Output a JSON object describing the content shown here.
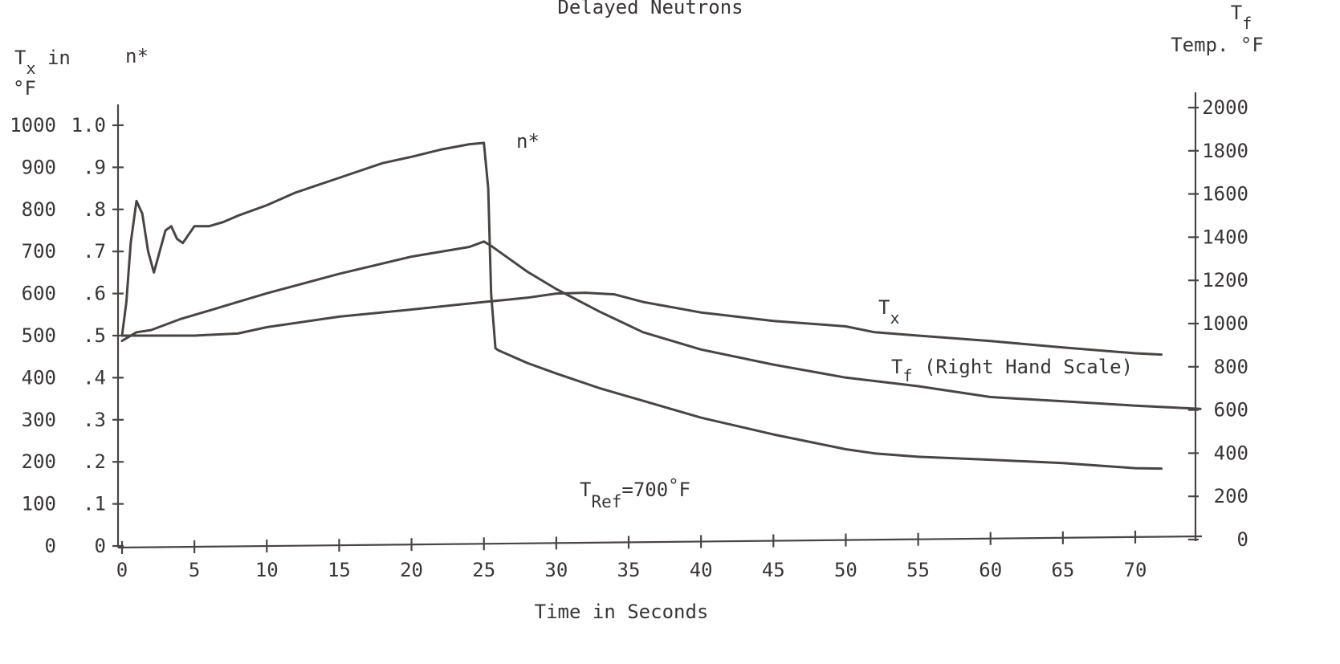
{
  "chart_data": {
    "type": "line",
    "title": "Delayed Neutrons",
    "xlabel": "Time in Seconds",
    "xlim": [
      0,
      75
    ],
    "x_ticks": [
      "0",
      "5",
      "10",
      "15",
      "20",
      "25",
      "30",
      "35",
      "40",
      "45",
      "50",
      "55",
      "60",
      "65",
      "70"
    ],
    "left_axis_tx": {
      "label_parts": [
        "T",
        "x",
        " in"
      ],
      "unit": "°F",
      "ylim": [
        0,
        1000
      ],
      "ticks": [
        "0",
        "100",
        "200",
        "300",
        "400",
        "500",
        "600",
        "700",
        "800",
        "900",
        "1000"
      ]
    },
    "left_axis_n": {
      "label": "n*",
      "ylim": [
        0,
        1.0
      ],
      "ticks": [
        "0",
        ".1",
        ".2",
        ".3",
        ".4",
        ".5",
        ".6",
        ".7",
        ".8",
        ".9",
        "1.0"
      ]
    },
    "right_axis_tf": {
      "label_parts": [
        "T",
        "f",
        "Temp. °F"
      ],
      "ylim": [
        0,
        2000
      ],
      "ticks": [
        "0",
        "200",
        "400",
        "600",
        "800",
        "1000",
        "1200",
        "1400",
        "1600",
        "1800",
        "2000"
      ]
    },
    "annotation": {
      "parts": [
        "T",
        "Ref",
        "=700",
        "°",
        "F"
      ]
    },
    "series": [
      {
        "name": "n*",
        "axis": "n",
        "x": [
          0,
          0.3,
          0.6,
          1.0,
          1.4,
          1.8,
          2.2,
          2.6,
          3.0,
          3.4,
          3.8,
          4.2,
          4.6,
          5.0,
          5.4,
          6.0,
          7,
          8,
          10,
          12,
          15,
          18,
          20,
          22,
          24,
          25,
          25.3,
          25.5,
          25.8,
          26,
          28,
          30,
          33,
          36,
          40,
          45,
          50,
          52,
          55,
          60,
          65,
          70,
          71.8
        ],
        "y": [
          0.5,
          0.58,
          0.72,
          0.82,
          0.79,
          0.7,
          0.65,
          0.7,
          0.75,
          0.76,
          0.73,
          0.72,
          0.74,
          0.76,
          0.76,
          0.76,
          0.77,
          0.785,
          0.81,
          0.84,
          0.875,
          0.91,
          0.925,
          0.942,
          0.955,
          0.958,
          0.85,
          0.6,
          0.47,
          0.465,
          0.435,
          0.41,
          0.375,
          0.345,
          0.305,
          0.265,
          0.23,
          0.22,
          0.212,
          0.205,
          0.197,
          0.185,
          0.184
        ],
        "label": "n*"
      },
      {
        "name": "Tx",
        "axis": "tx",
        "label_parts": [
          "T",
          "x"
        ],
        "x": [
          0,
          3,
          5,
          8,
          10,
          15,
          20,
          25,
          28,
          30,
          32,
          34,
          36,
          40,
          45,
          50,
          52,
          55,
          60,
          65,
          70,
          71.8
        ],
        "y": [
          500,
          500,
          500,
          505,
          520,
          545,
          562,
          580,
          590,
          600,
          602,
          598,
          580,
          555,
          535,
          522,
          508,
          500,
          487,
          472,
          458,
          455
        ]
      },
      {
        "name": "Tf (Right Hand Scale)",
        "axis": "tf",
        "label_parts": [
          "T",
          "f",
          " (Right Hand Scale)"
        ],
        "x": [
          0,
          1,
          2,
          4,
          6,
          8,
          10,
          15,
          20,
          24,
          25,
          25.5,
          28,
          30,
          33,
          36,
          40,
          45,
          50,
          55,
          60,
          65,
          70,
          74.5
        ],
        "y": [
          920,
          960,
          970,
          1020,
          1060,
          1100,
          1140,
          1230,
          1310,
          1355,
          1380,
          1360,
          1240,
          1160,
          1055,
          960,
          880,
          810,
          750,
          710,
          660,
          640,
          620,
          605
        ]
      }
    ]
  }
}
